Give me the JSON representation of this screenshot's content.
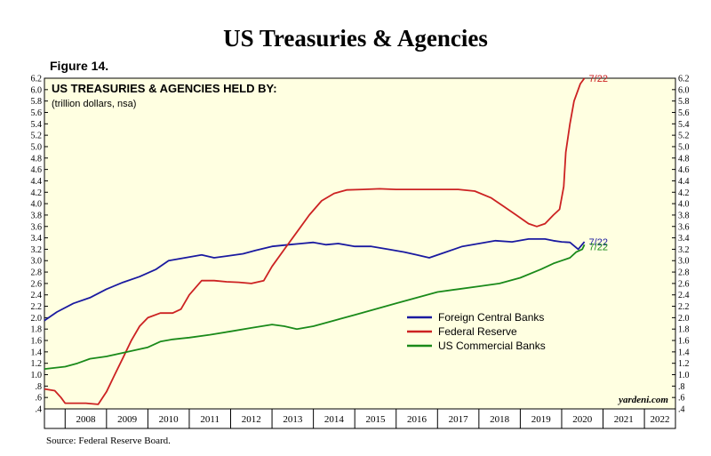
{
  "header": {
    "title": "US Treasuries & Agencies",
    "figure_label": "Figure 14.",
    "source": "Source: Federal Reserve Board."
  },
  "chart_data": {
    "type": "line",
    "title": "US TREASURIES & AGENCIES HELD BY:",
    "subtitle": "(trillion dollars, nsa)",
    "credit": "yardeni.com",
    "y_ticks": [
      "6.2",
      "6.0",
      "5.8",
      "5.6",
      "5.4",
      "5.2",
      "5.0",
      "4.8",
      "4.6",
      "4.4",
      "4.2",
      "4.0",
      "3.8",
      "3.6",
      "3.4",
      "3.2",
      "3.0",
      "2.8",
      "2.6",
      "2.4",
      "2.2",
      "2.0",
      "1.8",
      "1.6",
      "1.4",
      "1.2",
      "1.0",
      ".8",
      ".6",
      ".4"
    ],
    "ylim": [
      0.4,
      6.2
    ],
    "xlim": [
      2007.5,
      2022.75
    ],
    "years": [
      "2008",
      "2009",
      "2010",
      "2011",
      "2012",
      "2013",
      "2014",
      "2015",
      "2016",
      "2017",
      "2018",
      "2019",
      "2020",
      "2021",
      "2022"
    ],
    "legend_position": "center-right",
    "colors": {
      "background": "#ffffe1",
      "text": "#000000"
    },
    "series": [
      {
        "name": "Foreign Central Banks",
        "color": "#1a1aa0",
        "end_label": "7/22",
        "x": [
          2007.5,
          2007.8,
          2008.2,
          2008.6,
          2009.0,
          2009.4,
          2009.8,
          2010.2,
          2010.5,
          2010.9,
          2011.3,
          2011.6,
          2011.9,
          2012.3,
          2012.6,
          2013.0,
          2013.4,
          2013.7,
          2014.0,
          2014.3,
          2014.6,
          2015.0,
          2015.4,
          2015.8,
          2016.2,
          2016.5,
          2016.8,
          2017.2,
          2017.6,
          2018.0,
          2018.4,
          2018.8,
          2019.2,
          2019.6,
          2019.8,
          2020.0,
          2020.2,
          2020.4,
          2020.55
        ],
        "values": [
          1.95,
          2.1,
          2.25,
          2.35,
          2.5,
          2.62,
          2.72,
          2.85,
          3.0,
          3.05,
          3.1,
          3.05,
          3.08,
          3.12,
          3.18,
          3.25,
          3.28,
          3.3,
          3.32,
          3.28,
          3.3,
          3.25,
          3.25,
          3.2,
          3.15,
          3.1,
          3.05,
          3.15,
          3.25,
          3.3,
          3.35,
          3.33,
          3.38,
          3.38,
          3.35,
          3.33,
          3.32,
          3.2,
          3.33
        ]
      },
      {
        "name": "Federal Reserve",
        "color": "#cc2222",
        "end_label": "7/22",
        "x": [
          2007.5,
          2007.75,
          2007.9,
          2008.0,
          2008.5,
          2008.8,
          2009.0,
          2009.2,
          2009.4,
          2009.6,
          2009.8,
          2010.0,
          2010.3,
          2010.6,
          2010.8,
          2011.0,
          2011.3,
          2011.6,
          2011.9,
          2012.2,
          2012.5,
          2012.8,
          2013.0,
          2013.3,
          2013.6,
          2013.9,
          2014.2,
          2014.5,
          2014.8,
          2015.2,
          2015.6,
          2016.0,
          2016.5,
          2017.0,
          2017.5,
          2017.9,
          2018.3,
          2018.6,
          2018.9,
          2019.2,
          2019.4,
          2019.6,
          2019.8,
          2019.95,
          2020.05,
          2020.1,
          2020.2,
          2020.3,
          2020.45,
          2020.55
        ],
        "values": [
          0.75,
          0.72,
          0.6,
          0.5,
          0.5,
          0.48,
          0.7,
          1.0,
          1.3,
          1.6,
          1.85,
          2.0,
          2.08,
          2.08,
          2.15,
          2.4,
          2.65,
          2.65,
          2.63,
          2.62,
          2.6,
          2.65,
          2.9,
          3.2,
          3.5,
          3.8,
          4.05,
          4.18,
          4.24,
          4.25,
          4.26,
          4.25,
          4.25,
          4.25,
          4.25,
          4.22,
          4.1,
          3.95,
          3.8,
          3.65,
          3.6,
          3.65,
          3.8,
          3.9,
          4.3,
          4.9,
          5.4,
          5.8,
          6.1,
          6.2
        ]
      },
      {
        "name": "US Commercial Banks",
        "color": "#1a8a1a",
        "end_label": "7/22",
        "x": [
          2007.5,
          2008.0,
          2008.3,
          2008.6,
          2009.0,
          2009.5,
          2010.0,
          2010.3,
          2010.6,
          2011.0,
          2011.5,
          2012.0,
          2012.5,
          2013.0,
          2013.3,
          2013.6,
          2014.0,
          2014.5,
          2015.0,
          2015.5,
          2016.0,
          2016.5,
          2017.0,
          2017.5,
          2018.0,
          2018.5,
          2019.0,
          2019.5,
          2019.8,
          2020.0,
          2020.2,
          2020.35,
          2020.5,
          2020.55
        ],
        "values": [
          1.1,
          1.14,
          1.2,
          1.28,
          1.32,
          1.4,
          1.48,
          1.58,
          1.62,
          1.65,
          1.7,
          1.76,
          1.82,
          1.88,
          1.85,
          1.8,
          1.85,
          1.95,
          2.05,
          2.15,
          2.25,
          2.35,
          2.45,
          2.5,
          2.55,
          2.6,
          2.7,
          2.85,
          2.95,
          3.0,
          3.05,
          3.15,
          3.2,
          3.28
        ]
      }
    ]
  }
}
